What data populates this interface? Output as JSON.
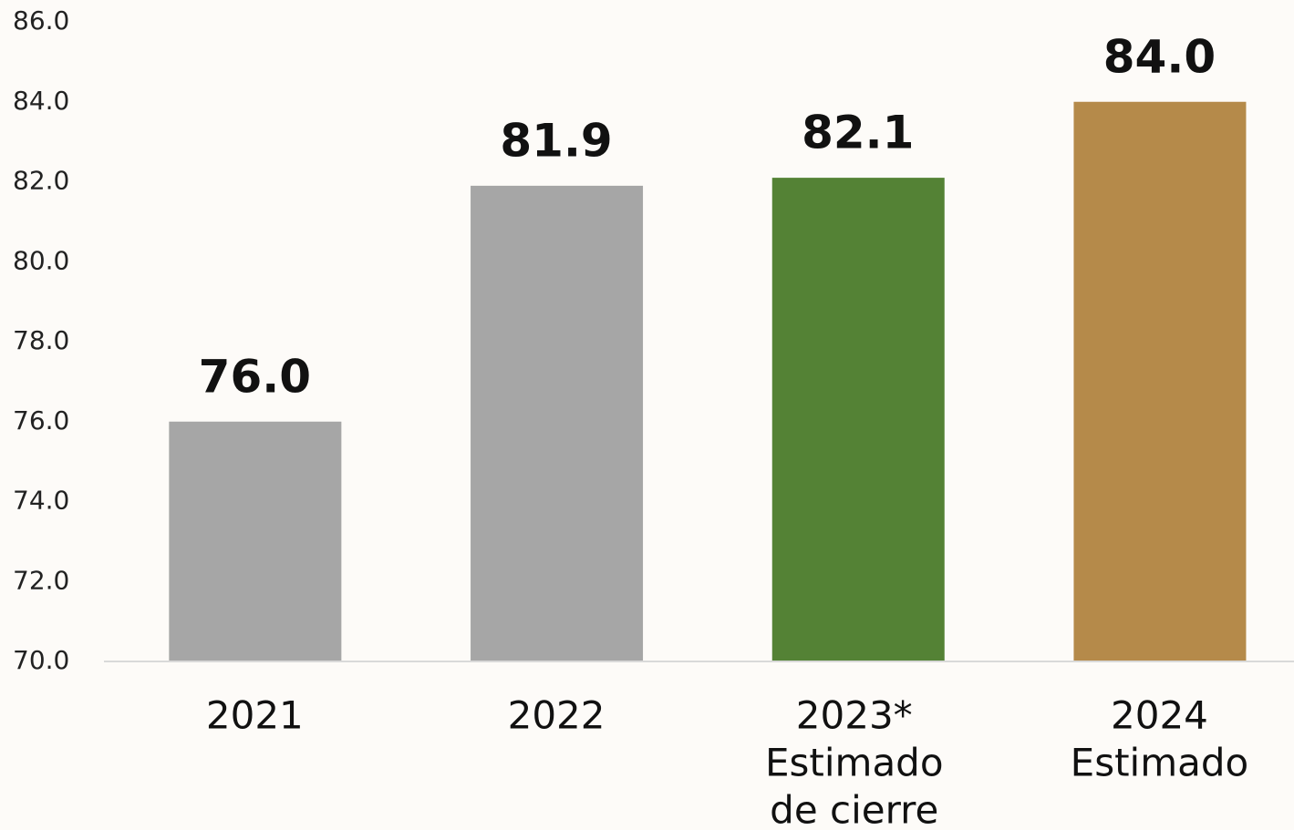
{
  "chart_data": {
    "type": "bar",
    "categories": [
      [
        "2021"
      ],
      [
        "2022"
      ],
      [
        "2023*",
        "Estimado",
        "de cierre"
      ],
      [
        "2024",
        "Estimado"
      ]
    ],
    "values": [
      76.0,
      81.9,
      82.1,
      84.0
    ],
    "value_labels": [
      "76.0",
      "81.9",
      "82.1",
      "84.0"
    ],
    "colors": [
      "#a6a6a6",
      "#a6a6a6",
      "#548235",
      "#b58a4a"
    ],
    "ylim": [
      70,
      86
    ],
    "yticks": [
      {
        "value": 70,
        "label": "70.0"
      },
      {
        "value": 72,
        "label": "72.0"
      },
      {
        "value": 74,
        "label": "74.0"
      },
      {
        "value": 76,
        "label": "76.0"
      },
      {
        "value": 78,
        "label": "78.0"
      },
      {
        "value": 80,
        "label": "80.0"
      },
      {
        "value": 82,
        "label": "82.0"
      },
      {
        "value": 84,
        "label": "84.0"
      },
      {
        "value": 86,
        "label": "86.0"
      }
    ],
    "grid": false
  }
}
